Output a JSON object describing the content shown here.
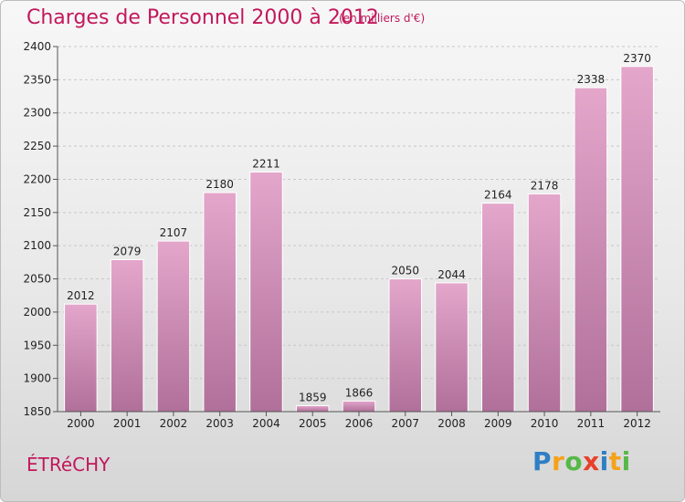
{
  "title": "Charges de Personnel 2000 à 2012",
  "subtitle": "(en milliers d'€)",
  "commune": "ÉTRéCHY",
  "logo": {
    "text": "Proxiti",
    "letters": [
      {
        "char": "P",
        "color": "#2e7fc4"
      },
      {
        "char": "r",
        "color": "#f5a21b"
      },
      {
        "char": "o",
        "color": "#57b847"
      },
      {
        "char": "x",
        "color": "#e8402a"
      },
      {
        "char": "i",
        "color": "#2e7fc4"
      },
      {
        "char": "t",
        "color": "#f5a21b"
      },
      {
        "char": "i",
        "color": "#57b847"
      }
    ]
  },
  "colors": {
    "title": "#c2185b",
    "bar_top": "#e4a6cb",
    "bar_bottom": "#b0709a",
    "grid": "#c8c8c8",
    "axis_text": "#222222"
  },
  "chart_data": {
    "type": "bar",
    "categories": [
      "2000",
      "2001",
      "2002",
      "2003",
      "2004",
      "2005",
      "2006",
      "2007",
      "2008",
      "2009",
      "2010",
      "2011",
      "2012"
    ],
    "values": [
      2012,
      2079,
      2107,
      2180,
      2211,
      1859,
      1866,
      2050,
      2044,
      2164,
      2178,
      2338,
      2370
    ],
    "title": "Charges de Personnel 2000 à 2012",
    "xlabel": "",
    "ylabel": "",
    "ylim": [
      1850,
      2400
    ],
    "yticks": [
      1850,
      1900,
      1950,
      2000,
      2050,
      2100,
      2150,
      2200,
      2250,
      2300,
      2350,
      2400
    ],
    "grid": true,
    "data_labels": true
  }
}
